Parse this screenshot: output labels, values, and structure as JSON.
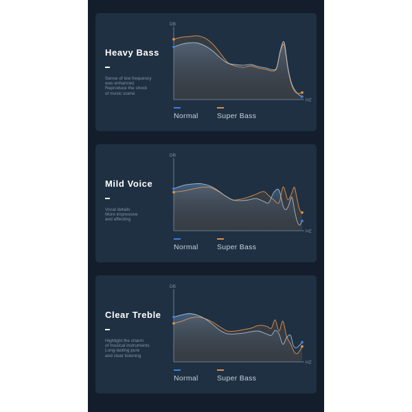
{
  "colors": {
    "normal": "#3b82e0",
    "super_bass": "#e0904a",
    "background": "#141d2c",
    "card": "#1f3042"
  },
  "chart_data": [
    {
      "type": "line",
      "title": "Heavy Bass",
      "description": [
        "Sense of low frequency",
        "was enhanced",
        "Reproduce the shock",
        "of music scene"
      ],
      "ylabel": "DB",
      "xlabel": "HZ",
      "legend_placement": "bottom",
      "grid": false,
      "xlim": [
        0,
        100
      ],
      "ylim": [
        0,
        100
      ],
      "x": [
        0,
        6,
        12,
        18,
        24,
        30,
        36,
        42,
        48,
        54,
        60,
        66,
        72,
        76,
        80,
        83,
        86,
        89,
        92,
        95,
        98,
        100
      ],
      "series": [
        {
          "name": "Normal",
          "values": [
            75,
            79,
            81,
            81,
            77,
            70,
            60,
            52,
            50,
            49,
            50,
            47,
            45,
            43,
            45,
            70,
            82,
            45,
            22,
            12,
            6,
            4
          ]
        },
        {
          "name": "Super Bass",
          "values": [
            86,
            89,
            90,
            91,
            88,
            80,
            67,
            53,
            48,
            46,
            48,
            45,
            43,
            41,
            44,
            68,
            78,
            43,
            20,
            10,
            9,
            10
          ]
        }
      ]
    },
    {
      "type": "line",
      "title": "Mild Voice",
      "description": [
        "Vocal details",
        "More impressive",
        "and affecting"
      ],
      "ylabel": "DB",
      "xlabel": "HZ",
      "legend_placement": "bottom",
      "grid": false,
      "xlim": [
        0,
        100
      ],
      "ylim": [
        0,
        100
      ],
      "x": [
        0,
        8,
        16,
        22,
        28,
        34,
        40,
        46,
        52,
        58,
        64,
        70,
        74,
        78,
        82,
        85,
        87,
        89,
        92,
        94,
        96,
        98,
        100
      ],
      "series": [
        {
          "name": "Normal",
          "values": [
            60,
            65,
            67,
            67,
            64,
            58,
            50,
            44,
            43,
            44,
            46,
            42,
            40,
            55,
            58,
            36,
            30,
            34,
            48,
            30,
            14,
            8,
            14
          ]
        },
        {
          "name": "Super Bass",
          "values": [
            55,
            57,
            60,
            62,
            62,
            57,
            50,
            44,
            45,
            48,
            52,
            56,
            50,
            44,
            40,
            62,
            55,
            44,
            54,
            62,
            46,
            30,
            26
          ]
        }
      ]
    },
    {
      "type": "line",
      "title": "Clear Treble",
      "description": [
        "Highlight the charm",
        "of musical instruments",
        "Long-lasting pure",
        "and clear listening"
      ],
      "ylabel": "DB",
      "xlabel": "HZ",
      "legend_placement": "bottom",
      "grid": false,
      "xlim": [
        0,
        100
      ],
      "ylim": [
        0,
        100
      ],
      "x": [
        0,
        6,
        12,
        18,
        24,
        30,
        36,
        42,
        48,
        54,
        60,
        66,
        72,
        76,
        79,
        82,
        85,
        88,
        91,
        93,
        95,
        97,
        100
      ],
      "series": [
        {
          "name": "Normal",
          "values": [
            64,
            67,
            69,
            67,
            62,
            54,
            45,
            40,
            40,
            41,
            43,
            44,
            40,
            38,
            45,
            40,
            25,
            35,
            38,
            24,
            20,
            22,
            28
          ]
        },
        {
          "name": "Super Bass",
          "values": [
            55,
            58,
            62,
            64,
            62,
            57,
            50,
            44,
            44,
            46,
            48,
            52,
            51,
            48,
            60,
            44,
            58,
            36,
            26,
            17,
            12,
            13,
            22
          ]
        }
      ]
    }
  ]
}
